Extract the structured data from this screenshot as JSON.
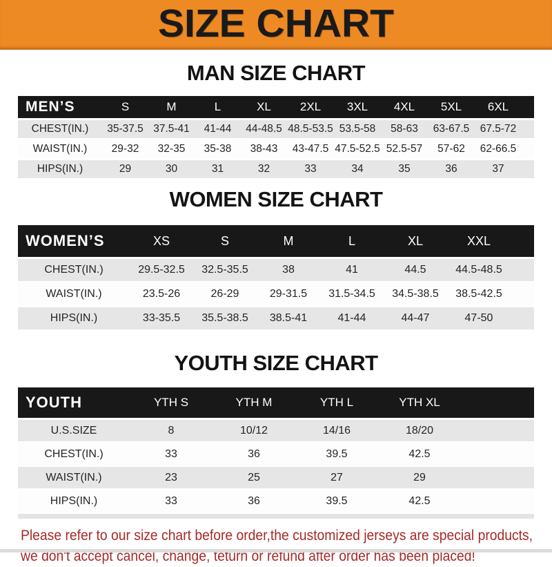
{
  "banner": {
    "title": "SIZE CHART"
  },
  "sections": [
    {
      "heading": "MAN SIZE CHART",
      "table": {
        "header": [
          "MEN’S",
          "S",
          "M",
          "L",
          "XL",
          "2XL",
          "3XL",
          "4XL",
          "5XL",
          "6XL"
        ],
        "rows": [
          [
            "CHEST(IN.)",
            "35-37.5",
            "37.5-41",
            "41-44",
            "44-48.5",
            "48.5-53.5",
            "53.5-58",
            "58-63",
            "63-67.5",
            "67.5-72"
          ],
          [
            "WAIST(IN.)",
            "29-32",
            "32-35",
            "35-38",
            "38-43",
            "43-47.5",
            "47.5-52.5",
            "52.5-57",
            "57-62",
            "62-66.5"
          ],
          [
            "HIPS(IN.)",
            "29",
            "30",
            "31",
            "32",
            "33",
            "34",
            "35",
            "36",
            "37"
          ]
        ]
      }
    },
    {
      "heading": "WOMEN SIZE CHART",
      "table": {
        "header": [
          "WOMEN’S",
          "XS",
          "S",
          "M",
          "L",
          "XL",
          "XXL"
        ],
        "rows": [
          [
            "CHEST(IN.)",
            "29.5-32.5",
            "32.5-35.5",
            "38",
            "41",
            "44.5",
            "44.5-48.5"
          ],
          [
            "WAIST(IN.)",
            "23.5-26",
            "26-29",
            "29-31.5",
            "31.5-34.5",
            "34.5-38.5",
            "38.5-42.5"
          ],
          [
            "HIPS(IN.)",
            "33-35.5",
            "35.5-38.5",
            "38.5-41",
            "41-44",
            "44-47",
            "47-50"
          ]
        ]
      }
    },
    {
      "heading": "YOUTH SIZE CHART",
      "table": {
        "header": [
          "YOUTH",
          "YTH S",
          "YTH M",
          "YTH L",
          "YTH XL"
        ],
        "rows": [
          [
            "U.S.SIZE",
            "8",
            "10/12",
            "14/16",
            "18/20"
          ],
          [
            "CHEST(IN.)",
            "33",
            "36",
            "39.5",
            "42.5"
          ],
          [
            "WAIST(IN.)",
            "23",
            "25",
            "27",
            "29"
          ],
          [
            "HIPS(IN.)",
            "33",
            "36",
            "39.5",
            "42.5"
          ]
        ]
      }
    }
  ],
  "disclaimer": {
    "line1": "Please refer to our size chart before order,the customized jerseys are special products,",
    "line2": "we don't accept cancel, change, teturn or refund after order has been placed!"
  },
  "colors": {
    "banner_orange": "#EE8A23",
    "header_bar_black": "#181818",
    "row_gray": "#E6E6E6",
    "disclaimer_red": "#A62A28"
  }
}
